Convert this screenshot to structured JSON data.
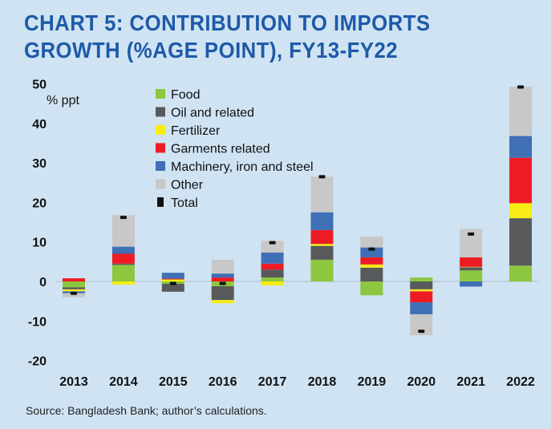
{
  "title_lines": [
    "CHART 5: CONTRIBUTION TO IMPORTS",
    "GROWTH (%AGE POINT), FY13-FY22"
  ],
  "source": "Source: Bangladesh Bank; author’s calculations.",
  "colors": {
    "Food": "#8dc63f",
    "Oil and related": "#58595b",
    "Fertilizer": "#f7ec13",
    "Garments related": "#ed1c24",
    "Machinery, iron and steel": "#3f6fb5",
    "Other": "#c8c8c8",
    "Total": "#111111"
  },
  "chart_data": {
    "type": "bar",
    "stacked": true,
    "categories": [
      "2013",
      "2014",
      "2015",
      "2016",
      "2017",
      "2018",
      "2019",
      "2020",
      "2021",
      "2022"
    ],
    "ylabel": "% ppt",
    "ylim": [
      -20,
      50
    ],
    "yticks": [
      50,
      40,
      30,
      20,
      10,
      0,
      -10,
      -20
    ],
    "legend_position": "top-left",
    "series": [
      {
        "name": "Food",
        "values": [
          -1.5,
          4.2,
          -0.6,
          -1.2,
          1.0,
          5.5,
          -3.5,
          1.0,
          2.8,
          4.0
        ]
      },
      {
        "name": "Oil and related",
        "values": [
          -0.5,
          0.3,
          -2.0,
          -3.5,
          2.0,
          3.5,
          3.5,
          -2.0,
          0.8,
          12.0
        ]
      },
      {
        "name": "Fertilizer",
        "values": [
          -0.5,
          -0.8,
          0.5,
          -0.8,
          -1.0,
          0.5,
          0.8,
          -0.5,
          0.1,
          3.8
        ]
      },
      {
        "name": "Garments related",
        "values": [
          0.8,
          2.5,
          0.2,
          1.0,
          1.5,
          3.5,
          1.8,
          -2.8,
          2.4,
          11.5
        ]
      },
      {
        "name": "Machinery, iron and steel",
        "values": [
          -0.5,
          1.8,
          1.5,
          1.0,
          2.8,
          4.5,
          2.5,
          -3.0,
          -1.3,
          5.5
        ]
      },
      {
        "name": "Other",
        "values": [
          -1.0,
          8.0,
          0.0,
          3.5,
          3.0,
          9.0,
          2.8,
          -5.3,
          7.2,
          12.5
        ]
      },
      {
        "name": "Total",
        "values": [
          -3.0,
          16.2,
          -0.5,
          -0.5,
          9.8,
          26.5,
          8.2,
          -12.6,
          12.0,
          49.2
        ]
      }
    ]
  }
}
